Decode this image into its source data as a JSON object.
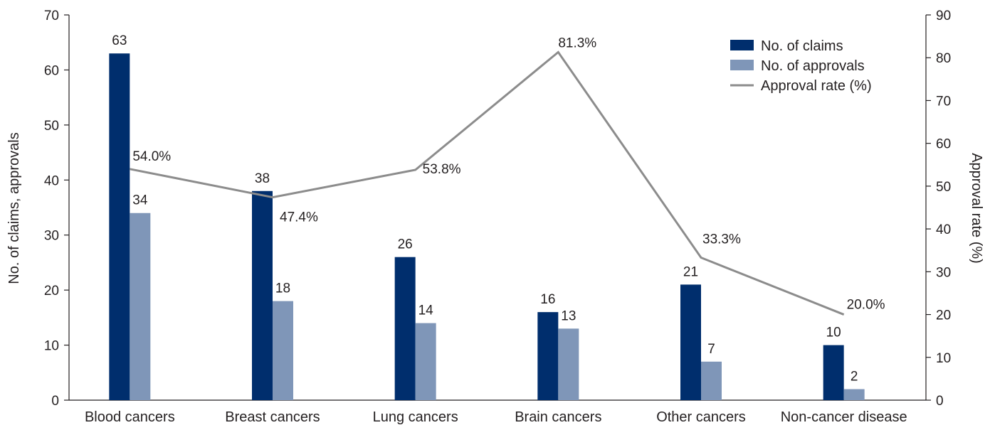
{
  "chart_data": {
    "type": "bar",
    "categories": [
      "Blood cancers",
      "Breast cancers",
      "Lung cancers",
      "Brain cancers",
      "Other cancers",
      "Non-cancer disease"
    ],
    "series": [
      {
        "name": "No. of claims",
        "kind": "bar",
        "axis": "left",
        "color": "#002e6d",
        "values": [
          63,
          38,
          26,
          16,
          21,
          10
        ],
        "labels": [
          "63",
          "38",
          "26",
          "16",
          "21",
          "10"
        ]
      },
      {
        "name": "No. of approvals",
        "kind": "bar",
        "axis": "left",
        "color": "#7f96b8",
        "values": [
          34,
          18,
          14,
          13,
          7,
          2
        ],
        "labels": [
          "34",
          "18",
          "14",
          "13",
          "7",
          "2"
        ]
      },
      {
        "name": "Approval rate (%)",
        "kind": "line",
        "axis": "right",
        "color": "#8c8c8c",
        "values": [
          54.0,
          47.4,
          53.8,
          81.3,
          33.3,
          20.0
        ],
        "labels": [
          "54.0%",
          "47.4%",
          "53.8%",
          "81.3%",
          "33.3%",
          "20.0%"
        ]
      }
    ],
    "ylabel": "No. of claims, approvals",
    "y2label": "Approval rate (%)",
    "ylim": [
      0,
      70
    ],
    "y2lim": [
      0,
      90
    ],
    "yticks": [
      "0",
      "10",
      "20",
      "30",
      "40",
      "50",
      "60",
      "70"
    ],
    "y2ticks": [
      "0",
      "10",
      "20",
      "30",
      "40",
      "50",
      "60",
      "70",
      "80",
      "90"
    ],
    "legend_position": "top-right",
    "grid": false
  }
}
